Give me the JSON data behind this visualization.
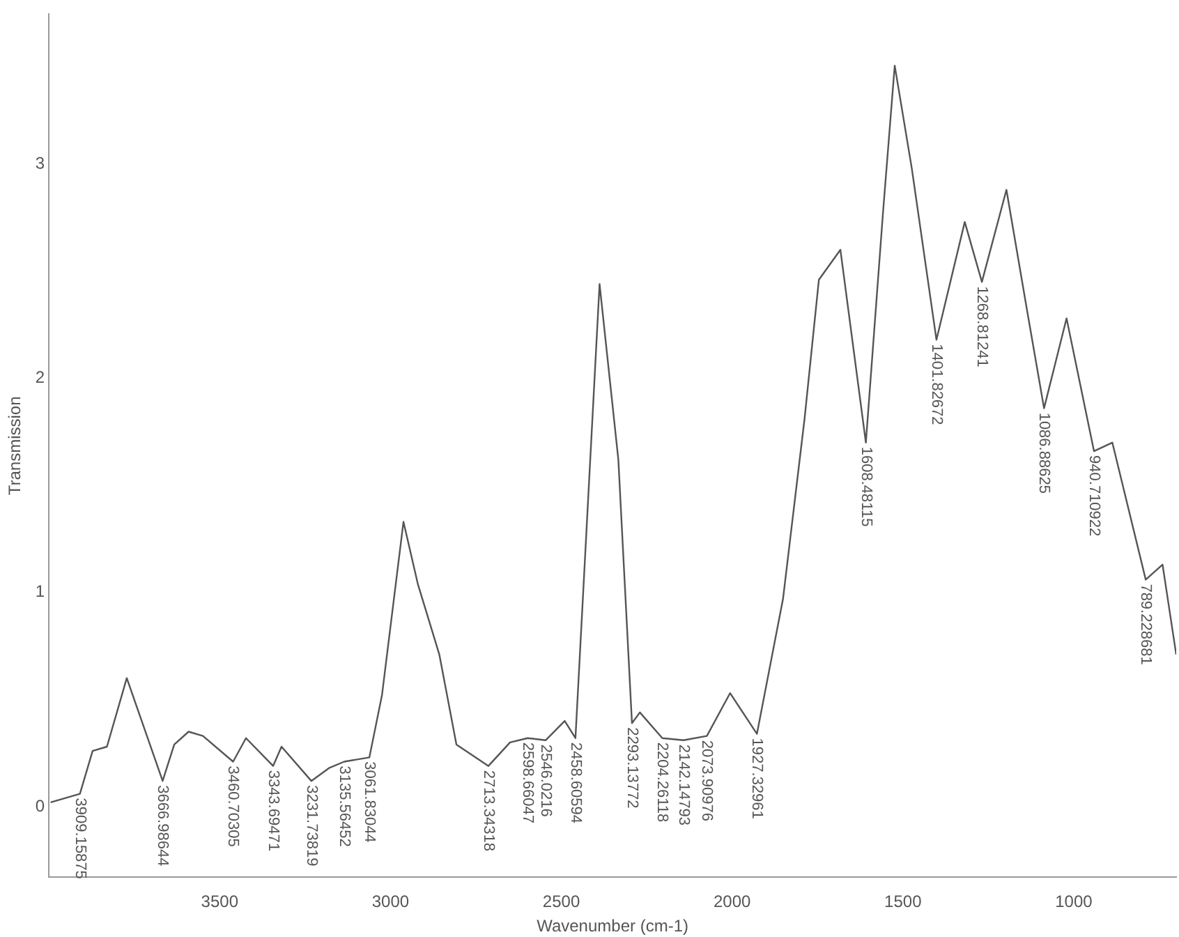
{
  "chart_data": {
    "type": "line",
    "xlabel": "Wavenumber (cm-1)",
    "ylabel": "Transmission",
    "xlim": [
      4000,
      700
    ],
    "xticks": [
      3500,
      3000,
      2500,
      2000,
      1500,
      1000
    ],
    "ylim": [
      -0.33,
      3.7
    ],
    "yticks": [
      0,
      1,
      2,
      3
    ],
    "grid": false,
    "legend": false,
    "marker": "none",
    "line_style": "solid",
    "series": [
      {
        "color": "#555555",
        "x": [
          3995,
          3909.15875,
          3872,
          3830,
          3772,
          3666.98644,
          3633,
          3591,
          3549,
          3460.70305,
          3423,
          3343.69471,
          3319,
          3231.73819,
          3180,
          3135.56452,
          3061.83044,
          3025,
          2962,
          2920,
          2857,
          2807,
          2713.34318,
          2650,
          2598.66047,
          2546.0216,
          2490,
          2458.60594,
          2388,
          2333,
          2293.13772,
          2270,
          2204.26118,
          2142.14793,
          2073.90976,
          2006,
          1927.32961,
          1851,
          1788,
          1746,
          1683,
          1608.48115,
          1558,
          1524,
          1474,
          1401.82672,
          1319,
          1268.81241,
          1197,
          1138,
          1086.88625,
          1021,
          940.710922,
          887,
          789.228681,
          740,
          700
        ],
        "values": [
          0.02,
          0.06,
          0.26,
          0.28,
          0.6,
          0.12,
          0.29,
          0.35,
          0.33,
          0.21,
          0.32,
          0.19,
          0.28,
          0.12,
          0.18,
          0.21,
          0.23,
          0.52,
          1.33,
          1.04,
          0.71,
          0.29,
          0.19,
          0.3,
          0.32,
          0.31,
          0.4,
          0.32,
          2.44,
          1.62,
          0.39,
          0.44,
          0.32,
          0.31,
          0.33,
          0.53,
          0.34,
          0.97,
          1.81,
          2.46,
          2.6,
          1.7,
          2.78,
          3.46,
          2.98,
          2.18,
          2.73,
          2.45,
          2.88,
          2.33,
          1.86,
          2.28,
          1.66,
          1.7,
          1.06,
          1.13,
          0.71
        ]
      }
    ],
    "annotations": [
      {
        "text": "3909.15875",
        "x": 3909.15875,
        "y": 0.06
      },
      {
        "text": "3666.98644",
        "x": 3666.98644,
        "y": 0.12
      },
      {
        "text": "3460.70305",
        "x": 3460.70305,
        "y": 0.21
      },
      {
        "text": "3343.69471",
        "x": 3343.69471,
        "y": 0.19
      },
      {
        "text": "3231.73819",
        "x": 3231.73819,
        "y": 0.12
      },
      {
        "text": "3135.56452",
        "x": 3135.56452,
        "y": 0.21
      },
      {
        "text": "3061.83044",
        "x": 3061.83044,
        "y": 0.23
      },
      {
        "text": "2713.34318",
        "x": 2713.34318,
        "y": 0.19
      },
      {
        "text": "2598.66047",
        "x": 2598.66047,
        "y": 0.32
      },
      {
        "text": "2546.0216",
        "x": 2546.0216,
        "y": 0.31
      },
      {
        "text": "2458.60594",
        "x": 2458.60594,
        "y": 0.32
      },
      {
        "text": "2293.13772",
        "x": 2293.13772,
        "y": 0.39
      },
      {
        "text": "2204.26118",
        "x": 2204.26118,
        "y": 0.32
      },
      {
        "text": "2142.14793",
        "x": 2142.14793,
        "y": 0.31
      },
      {
        "text": "2073.90976",
        "x": 2073.90976,
        "y": 0.33
      },
      {
        "text": "1927.32961",
        "x": 1927.32961,
        "y": 0.34
      },
      {
        "text": "1608.48115",
        "x": 1608.48115,
        "y": 1.7
      },
      {
        "text": "1401.82672",
        "x": 1401.82672,
        "y": 2.18
      },
      {
        "text": "1268.81241",
        "x": 1268.81241,
        "y": 2.45
      },
      {
        "text": "1086.88625",
        "x": 1086.88625,
        "y": 1.86
      },
      {
        "text": "940.710922",
        "x": 940.710922,
        "y": 1.66
      },
      {
        "text": "789.228681",
        "x": 789.228681,
        "y": 1.06
      }
    ]
  }
}
